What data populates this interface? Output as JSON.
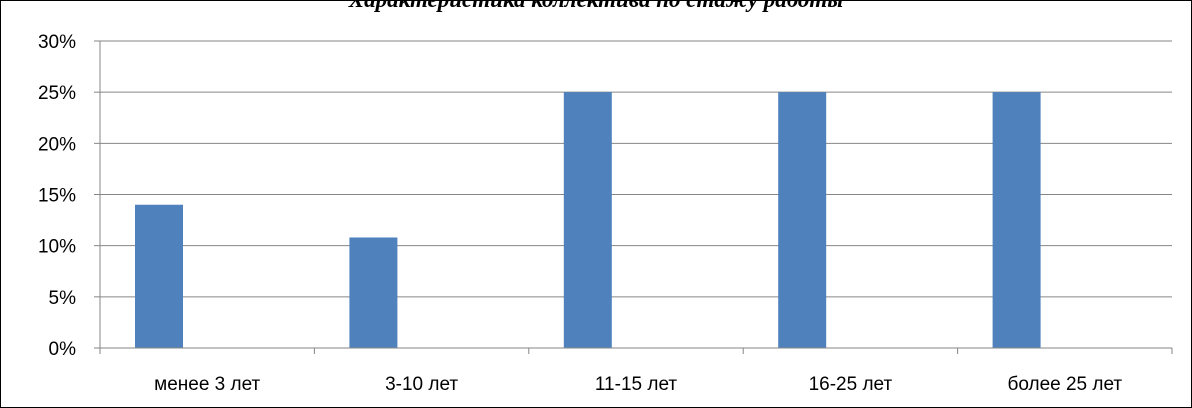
{
  "chart_data": {
    "type": "bar",
    "title": "Характеристика коллектива по стажу работы",
    "categories": [
      "менее 3 лет",
      "3-10 лет",
      "11-15 лет",
      "16-25 лет",
      "более 25 лет"
    ],
    "series": [
      {
        "values": [
          14,
          10.8,
          25,
          25,
          25
        ]
      }
    ],
    "ylim": [
      0,
      30
    ],
    "yticks": [
      "0%",
      "5%",
      "10%",
      "15%",
      "20%",
      "25%",
      "30%"
    ],
    "y_unit": "%",
    "grid": true,
    "legend": "none",
    "bar_color": "#4f81bd"
  }
}
